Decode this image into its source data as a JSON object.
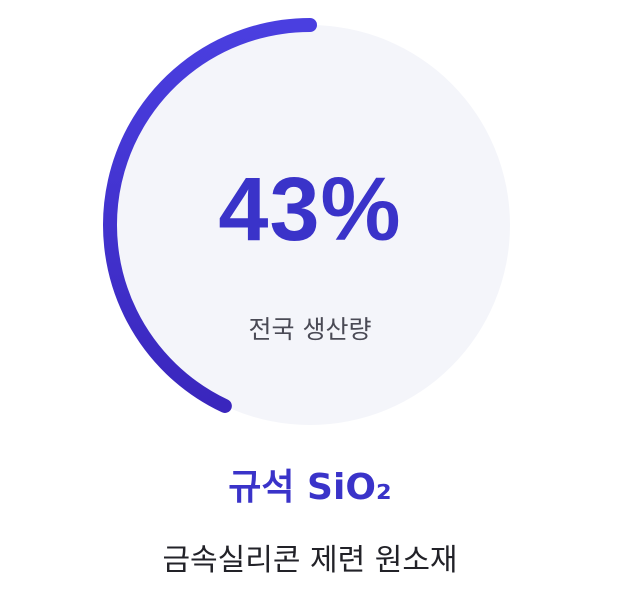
{
  "gauge": {
    "percent_text": "43%",
    "progress": 0.43,
    "label": "전국 생산량",
    "track_color": "#f4f5fa",
    "arc_color_start": "#4a3fe0",
    "arc_color_end": "#3a26bd"
  },
  "title": "규석 SiO₂",
  "subtitle": "금속실리콘 제련 원소재"
}
